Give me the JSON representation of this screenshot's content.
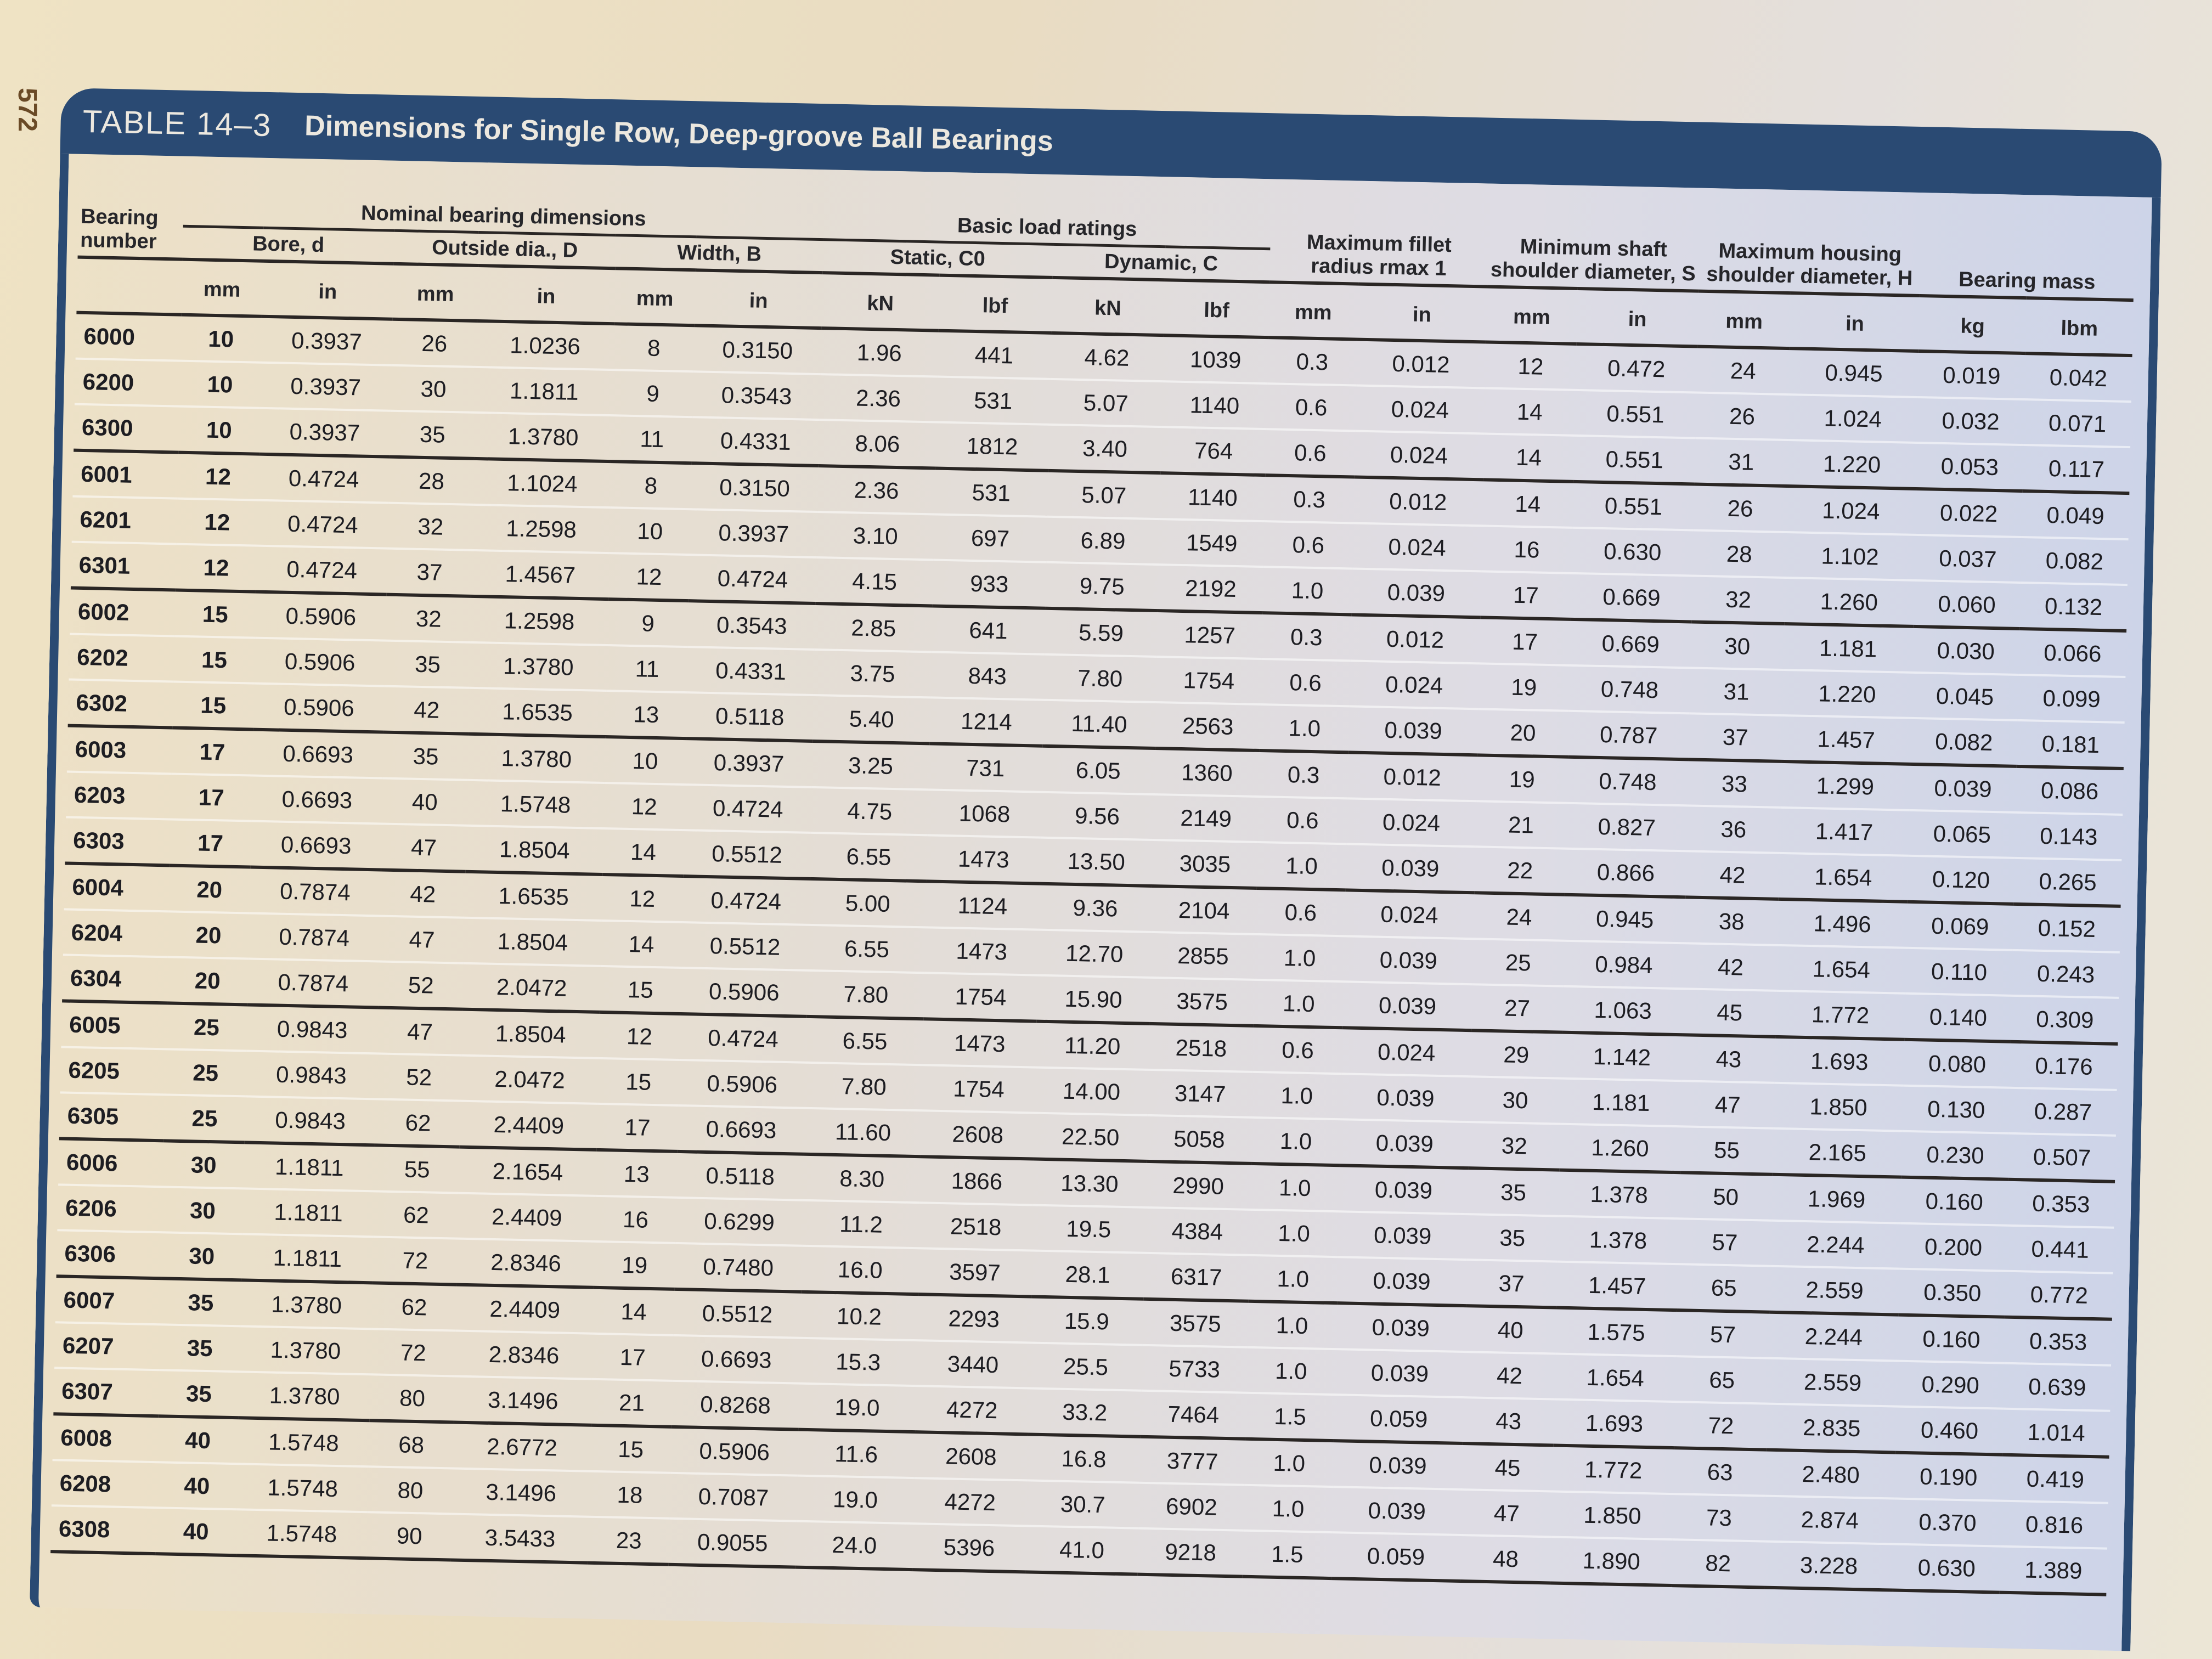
{
  "page_number": "572",
  "title": {
    "label": "TABLE 14–3",
    "text": "Dimensions for Single Row, Deep-groove Ball Bearings"
  },
  "header": {
    "bearing_number": "Bearing number",
    "nominal_dimensions": "Nominal bearing dimensions",
    "bore": "Bore, d",
    "outside_dia": "Outside dia., D",
    "width": "Width, B",
    "basic_load_ratings": "Basic load ratings",
    "static": "Static, C0",
    "dynamic": "Dynamic, C",
    "fillet": "Maximum fillet radius rmax 1",
    "shaft_shoulder": "Minimum shaft shoulder diameter, S",
    "housing_shoulder": "Maximum housing shoulder diameter, H",
    "mass": "Bearing mass",
    "units": [
      "mm",
      "in",
      "mm",
      "in",
      "mm",
      "in",
      "kN",
      "lbf",
      "kN",
      "lbf",
      "mm",
      "in",
      "mm",
      "in",
      "mm",
      "in",
      "kg",
      "lbm"
    ]
  },
  "rows": [
    {
      "n": "6000",
      "d_mm": "10",
      "d_in": "0.3937",
      "D_mm": "26",
      "D_in": "1.0236",
      "B_mm": "8",
      "B_in": "0.3150",
      "C0_kN": "1.96",
      "C0_lb": "441",
      "C_kN": "4.62",
      "C_lb": "1039",
      "r_mm": "0.3",
      "r_in": "0.012",
      "S_mm": "12",
      "S_in": "0.472",
      "H_mm": "24",
      "H_in": "0.945",
      "kg": "0.019",
      "lbm": "0.042"
    },
    {
      "n": "6200",
      "d_mm": "10",
      "d_in": "0.3937",
      "D_mm": "30",
      "D_in": "1.1811",
      "B_mm": "9",
      "B_in": "0.3543",
      "C0_kN": "2.36",
      "C0_lb": "531",
      "C_kN": "5.07",
      "C_lb": "1140",
      "r_mm": "0.6",
      "r_in": "0.024",
      "S_mm": "14",
      "S_in": "0.551",
      "H_mm": "26",
      "H_in": "1.024",
      "kg": "0.032",
      "lbm": "0.071"
    },
    {
      "n": "6300",
      "d_mm": "10",
      "d_in": "0.3937",
      "D_mm": "35",
      "D_in": "1.3780",
      "B_mm": "11",
      "B_in": "0.4331",
      "C0_kN": "8.06",
      "C0_lb": "1812",
      "C_kN": "3.40",
      "C_lb": "764",
      "r_mm": "0.6",
      "r_in": "0.024",
      "S_mm": "14",
      "S_in": "0.551",
      "H_mm": "31",
      "H_in": "1.220",
      "kg": "0.053",
      "lbm": "0.117"
    },
    {
      "n": "6001",
      "d_mm": "12",
      "d_in": "0.4724",
      "D_mm": "28",
      "D_in": "1.1024",
      "B_mm": "8",
      "B_in": "0.3150",
      "C0_kN": "2.36",
      "C0_lb": "531",
      "C_kN": "5.07",
      "C_lb": "1140",
      "r_mm": "0.3",
      "r_in": "0.012",
      "S_mm": "14",
      "S_in": "0.551",
      "H_mm": "26",
      "H_in": "1.024",
      "kg": "0.022",
      "lbm": "0.049"
    },
    {
      "n": "6201",
      "d_mm": "12",
      "d_in": "0.4724",
      "D_mm": "32",
      "D_in": "1.2598",
      "B_mm": "10",
      "B_in": "0.3937",
      "C0_kN": "3.10",
      "C0_lb": "697",
      "C_kN": "6.89",
      "C_lb": "1549",
      "r_mm": "0.6",
      "r_in": "0.024",
      "S_mm": "16",
      "S_in": "0.630",
      "H_mm": "28",
      "H_in": "1.102",
      "kg": "0.037",
      "lbm": "0.082"
    },
    {
      "n": "6301",
      "d_mm": "12",
      "d_in": "0.4724",
      "D_mm": "37",
      "D_in": "1.4567",
      "B_mm": "12",
      "B_in": "0.4724",
      "C0_kN": "4.15",
      "C0_lb": "933",
      "C_kN": "9.75",
      "C_lb": "2192",
      "r_mm": "1.0",
      "r_in": "0.039",
      "S_mm": "17",
      "S_in": "0.669",
      "H_mm": "32",
      "H_in": "1.260",
      "kg": "0.060",
      "lbm": "0.132"
    },
    {
      "n": "6002",
      "d_mm": "15",
      "d_in": "0.5906",
      "D_mm": "32",
      "D_in": "1.2598",
      "B_mm": "9",
      "B_in": "0.3543",
      "C0_kN": "2.85",
      "C0_lb": "641",
      "C_kN": "5.59",
      "C_lb": "1257",
      "r_mm": "0.3",
      "r_in": "0.012",
      "S_mm": "17",
      "S_in": "0.669",
      "H_mm": "30",
      "H_in": "1.181",
      "kg": "0.030",
      "lbm": "0.066"
    },
    {
      "n": "6202",
      "d_mm": "15",
      "d_in": "0.5906",
      "D_mm": "35",
      "D_in": "1.3780",
      "B_mm": "11",
      "B_in": "0.4331",
      "C0_kN": "3.75",
      "C0_lb": "843",
      "C_kN": "7.80",
      "C_lb": "1754",
      "r_mm": "0.6",
      "r_in": "0.024",
      "S_mm": "19",
      "S_in": "0.748",
      "H_mm": "31",
      "H_in": "1.220",
      "kg": "0.045",
      "lbm": "0.099"
    },
    {
      "n": "6302",
      "d_mm": "15",
      "d_in": "0.5906",
      "D_mm": "42",
      "D_in": "1.6535",
      "B_mm": "13",
      "B_in": "0.5118",
      "C0_kN": "5.40",
      "C0_lb": "1214",
      "C_kN": "11.40",
      "C_lb": "2563",
      "r_mm": "1.0",
      "r_in": "0.039",
      "S_mm": "20",
      "S_in": "0.787",
      "H_mm": "37",
      "H_in": "1.457",
      "kg": "0.082",
      "lbm": "0.181"
    },
    {
      "n": "6003",
      "d_mm": "17",
      "d_in": "0.6693",
      "D_mm": "35",
      "D_in": "1.3780",
      "B_mm": "10",
      "B_in": "0.3937",
      "C0_kN": "3.25",
      "C0_lb": "731",
      "C_kN": "6.05",
      "C_lb": "1360",
      "r_mm": "0.3",
      "r_in": "0.012",
      "S_mm": "19",
      "S_in": "0.748",
      "H_mm": "33",
      "H_in": "1.299",
      "kg": "0.039",
      "lbm": "0.086"
    },
    {
      "n": "6203",
      "d_mm": "17",
      "d_in": "0.6693",
      "D_mm": "40",
      "D_in": "1.5748",
      "B_mm": "12",
      "B_in": "0.4724",
      "C0_kN": "4.75",
      "C0_lb": "1068",
      "C_kN": "9.56",
      "C_lb": "2149",
      "r_mm": "0.6",
      "r_in": "0.024",
      "S_mm": "21",
      "S_in": "0.827",
      "H_mm": "36",
      "H_in": "1.417",
      "kg": "0.065",
      "lbm": "0.143"
    },
    {
      "n": "6303",
      "d_mm": "17",
      "d_in": "0.6693",
      "D_mm": "47",
      "D_in": "1.8504",
      "B_mm": "14",
      "B_in": "0.5512",
      "C0_kN": "6.55",
      "C0_lb": "1473",
      "C_kN": "13.50",
      "C_lb": "3035",
      "r_mm": "1.0",
      "r_in": "0.039",
      "S_mm": "22",
      "S_in": "0.866",
      "H_mm": "42",
      "H_in": "1.654",
      "kg": "0.120",
      "lbm": "0.265"
    },
    {
      "n": "6004",
      "d_mm": "20",
      "d_in": "0.7874",
      "D_mm": "42",
      "D_in": "1.6535",
      "B_mm": "12",
      "B_in": "0.4724",
      "C0_kN": "5.00",
      "C0_lb": "1124",
      "C_kN": "9.36",
      "C_lb": "2104",
      "r_mm": "0.6",
      "r_in": "0.024",
      "S_mm": "24",
      "S_in": "0.945",
      "H_mm": "38",
      "H_in": "1.496",
      "kg": "0.069",
      "lbm": "0.152"
    },
    {
      "n": "6204",
      "d_mm": "20",
      "d_in": "0.7874",
      "D_mm": "47",
      "D_in": "1.8504",
      "B_mm": "14",
      "B_in": "0.5512",
      "C0_kN": "6.55",
      "C0_lb": "1473",
      "C_kN": "12.70",
      "C_lb": "2855",
      "r_mm": "1.0",
      "r_in": "0.039",
      "S_mm": "25",
      "S_in": "0.984",
      "H_mm": "42",
      "H_in": "1.654",
      "kg": "0.110",
      "lbm": "0.243"
    },
    {
      "n": "6304",
      "d_mm": "20",
      "d_in": "0.7874",
      "D_mm": "52",
      "D_in": "2.0472",
      "B_mm": "15",
      "B_in": "0.5906",
      "C0_kN": "7.80",
      "C0_lb": "1754",
      "C_kN": "15.90",
      "C_lb": "3575",
      "r_mm": "1.0",
      "r_in": "0.039",
      "S_mm": "27",
      "S_in": "1.063",
      "H_mm": "45",
      "H_in": "1.772",
      "kg": "0.140",
      "lbm": "0.309"
    },
    {
      "n": "6005",
      "d_mm": "25",
      "d_in": "0.9843",
      "D_mm": "47",
      "D_in": "1.8504",
      "B_mm": "12",
      "B_in": "0.4724",
      "C0_kN": "6.55",
      "C0_lb": "1473",
      "C_kN": "11.20",
      "C_lb": "2518",
      "r_mm": "0.6",
      "r_in": "0.024",
      "S_mm": "29",
      "S_in": "1.142",
      "H_mm": "43",
      "H_in": "1.693",
      "kg": "0.080",
      "lbm": "0.176"
    },
    {
      "n": "6205",
      "d_mm": "25",
      "d_in": "0.9843",
      "D_mm": "52",
      "D_in": "2.0472",
      "B_mm": "15",
      "B_in": "0.5906",
      "C0_kN": "7.80",
      "C0_lb": "1754",
      "C_kN": "14.00",
      "C_lb": "3147",
      "r_mm": "1.0",
      "r_in": "0.039",
      "S_mm": "30",
      "S_in": "1.181",
      "H_mm": "47",
      "H_in": "1.850",
      "kg": "0.130",
      "lbm": "0.287"
    },
    {
      "n": "6305",
      "d_mm": "25",
      "d_in": "0.9843",
      "D_mm": "62",
      "D_in": "2.4409",
      "B_mm": "17",
      "B_in": "0.6693",
      "C0_kN": "11.60",
      "C0_lb": "2608",
      "C_kN": "22.50",
      "C_lb": "5058",
      "r_mm": "1.0",
      "r_in": "0.039",
      "S_mm": "32",
      "S_in": "1.260",
      "H_mm": "55",
      "H_in": "2.165",
      "kg": "0.230",
      "lbm": "0.507"
    },
    {
      "n": "6006",
      "d_mm": "30",
      "d_in": "1.1811",
      "D_mm": "55",
      "D_in": "2.1654",
      "B_mm": "13",
      "B_in": "0.5118",
      "C0_kN": "8.30",
      "C0_lb": "1866",
      "C_kN": "13.30",
      "C_lb": "2990",
      "r_mm": "1.0",
      "r_in": "0.039",
      "S_mm": "35",
      "S_in": "1.378",
      "H_mm": "50",
      "H_in": "1.969",
      "kg": "0.160",
      "lbm": "0.353"
    },
    {
      "n": "6206",
      "d_mm": "30",
      "d_in": "1.1811",
      "D_mm": "62",
      "D_in": "2.4409",
      "B_mm": "16",
      "B_in": "0.6299",
      "C0_kN": "11.2",
      "C0_lb": "2518",
      "C_kN": "19.5",
      "C_lb": "4384",
      "r_mm": "1.0",
      "r_in": "0.039",
      "S_mm": "35",
      "S_in": "1.378",
      "H_mm": "57",
      "H_in": "2.244",
      "kg": "0.200",
      "lbm": "0.441"
    },
    {
      "n": "6306",
      "d_mm": "30",
      "d_in": "1.1811",
      "D_mm": "72",
      "D_in": "2.8346",
      "B_mm": "19",
      "B_in": "0.7480",
      "C0_kN": "16.0",
      "C0_lb": "3597",
      "C_kN": "28.1",
      "C_lb": "6317",
      "r_mm": "1.0",
      "r_in": "0.039",
      "S_mm": "37",
      "S_in": "1.457",
      "H_mm": "65",
      "H_in": "2.559",
      "kg": "0.350",
      "lbm": "0.772"
    },
    {
      "n": "6007",
      "d_mm": "35",
      "d_in": "1.3780",
      "D_mm": "62",
      "D_in": "2.4409",
      "B_mm": "14",
      "B_in": "0.5512",
      "C0_kN": "10.2",
      "C0_lb": "2293",
      "C_kN": "15.9",
      "C_lb": "3575",
      "r_mm": "1.0",
      "r_in": "0.039",
      "S_mm": "40",
      "S_in": "1.575",
      "H_mm": "57",
      "H_in": "2.244",
      "kg": "0.160",
      "lbm": "0.353"
    },
    {
      "n": "6207",
      "d_mm": "35",
      "d_in": "1.3780",
      "D_mm": "72",
      "D_in": "2.8346",
      "B_mm": "17",
      "B_in": "0.6693",
      "C0_kN": "15.3",
      "C0_lb": "3440",
      "C_kN": "25.5",
      "C_lb": "5733",
      "r_mm": "1.0",
      "r_in": "0.039",
      "S_mm": "42",
      "S_in": "1.654",
      "H_mm": "65",
      "H_in": "2.559",
      "kg": "0.290",
      "lbm": "0.639"
    },
    {
      "n": "6307",
      "d_mm": "35",
      "d_in": "1.3780",
      "D_mm": "80",
      "D_in": "3.1496",
      "B_mm": "21",
      "B_in": "0.8268",
      "C0_kN": "19.0",
      "C0_lb": "4272",
      "C_kN": "33.2",
      "C_lb": "7464",
      "r_mm": "1.5",
      "r_in": "0.059",
      "S_mm": "43",
      "S_in": "1.693",
      "H_mm": "72",
      "H_in": "2.835",
      "kg": "0.460",
      "lbm": "1.014"
    },
    {
      "n": "6008",
      "d_mm": "40",
      "d_in": "1.5748",
      "D_mm": "68",
      "D_in": "2.6772",
      "B_mm": "15",
      "B_in": "0.5906",
      "C0_kN": "11.6",
      "C0_lb": "2608",
      "C_kN": "16.8",
      "C_lb": "3777",
      "r_mm": "1.0",
      "r_in": "0.039",
      "S_mm": "45",
      "S_in": "1.772",
      "H_mm": "63",
      "H_in": "2.480",
      "kg": "0.190",
      "lbm": "0.419"
    },
    {
      "n": "6208",
      "d_mm": "40",
      "d_in": "1.5748",
      "D_mm": "80",
      "D_in": "3.1496",
      "B_mm": "18",
      "B_in": "0.7087",
      "C0_kN": "19.0",
      "C0_lb": "4272",
      "C_kN": "30.7",
      "C_lb": "6902",
      "r_mm": "1.0",
      "r_in": "0.039",
      "S_mm": "47",
      "S_in": "1.850",
      "H_mm": "73",
      "H_in": "2.874",
      "kg": "0.370",
      "lbm": "0.816"
    },
    {
      "n": "6308",
      "d_mm": "40",
      "d_in": "1.5748",
      "D_mm": "90",
      "D_in": "3.5433",
      "B_mm": "23",
      "B_in": "0.9055",
      "C0_kN": "24.0",
      "C0_lb": "5396",
      "C_kN": "41.0",
      "C_lb": "9218",
      "r_mm": "1.5",
      "r_in": "0.059",
      "S_mm": "48",
      "S_in": "1.890",
      "H_mm": "82",
      "H_in": "3.228",
      "kg": "0.630",
      "lbm": "1.389"
    }
  ]
}
